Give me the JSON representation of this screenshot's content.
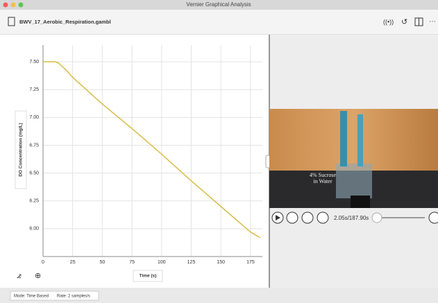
{
  "window": {
    "title": "Vernier Graphical Analysis"
  },
  "toolbar": {
    "file_name": "BWV_17_Aerobic_Respiration.gambl"
  },
  "chart_data": {
    "type": "line",
    "xlabel": "Time (s)",
    "ylabel": "DO Concentration (mg/L)",
    "x": [
      0,
      5,
      10,
      13,
      20,
      25,
      50,
      75,
      100,
      125,
      150,
      175,
      183
    ],
    "series": [
      {
        "color": "#d9bf4e",
        "values": [
          7.5,
          7.5,
          7.5,
          7.49,
          7.42,
          7.36,
          7.12,
          6.9,
          6.67,
          6.43,
          6.2,
          5.97,
          5.92
        ]
      }
    ],
    "xlim": [
      0,
      185
    ],
    "ylim": [
      5.75,
      7.65
    ],
    "xticks": [
      0,
      25,
      50,
      75,
      100,
      125,
      150,
      175
    ],
    "yticks": [
      {
        "value": 6,
        "label": "6.00"
      },
      {
        "value": 6.25,
        "label": "6.25"
      },
      {
        "value": 6.5,
        "label": "6.50"
      },
      {
        "value": 6.75,
        "label": "6.75"
      },
      {
        "value": 7,
        "label": "7.00"
      },
      {
        "value": 7.25,
        "label": "7.25"
      },
      {
        "value": 7.5,
        "label": "7.50"
      }
    ],
    "grid": true
  },
  "video": {
    "caption_line1": "4% Sucrose",
    "caption_line2": "in Water",
    "time": "2.05s/187.90s"
  },
  "status": {
    "mode": "Mode: Time Based",
    "rate": "Rate: 2 samples/s"
  }
}
